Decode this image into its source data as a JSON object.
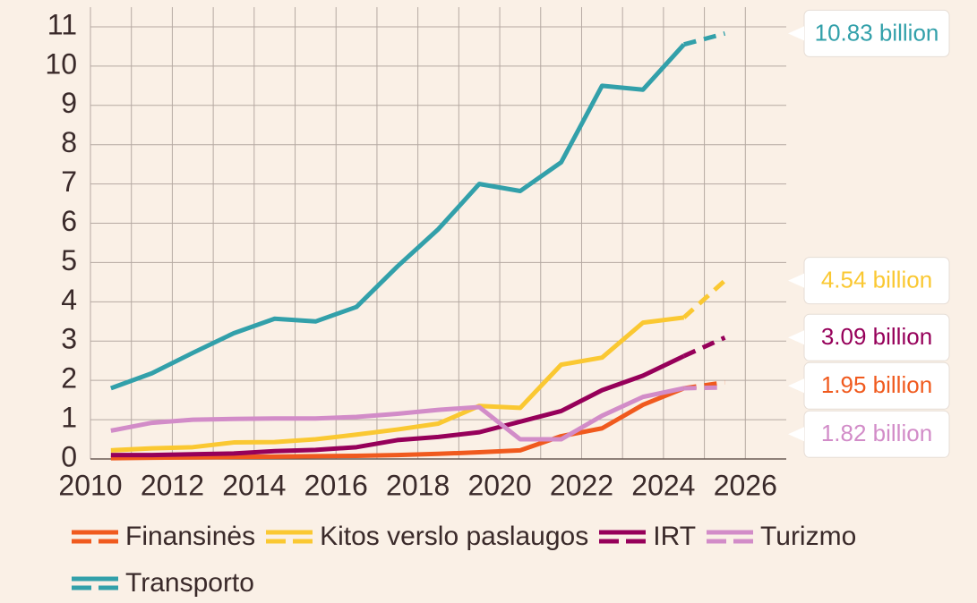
{
  "chart_data": {
    "type": "line",
    "x": [
      2010.5,
      2011.5,
      2012.5,
      2013.5,
      2014.5,
      2015.5,
      2016.5,
      2017.5,
      2018.5,
      2019.5,
      2020.5,
      2021.5,
      2022.5,
      2023.5,
      2024.5,
      2025.5
    ],
    "forecast_from": 2024.5,
    "series": [
      {
        "name": "Finansinės",
        "color": "#f05a1e",
        "values": [
          0.02,
          0.03,
          0.04,
          0.05,
          0.06,
          0.07,
          0.08,
          0.1,
          0.13,
          0.17,
          0.22,
          0.58,
          0.78,
          1.38,
          1.8,
          1.95
        ],
        "end_label": "1.95 billion"
      },
      {
        "name": "Kitos verslo paslaugos",
        "color": "#fac832",
        "values": [
          0.22,
          0.27,
          0.3,
          0.42,
          0.43,
          0.5,
          0.62,
          0.75,
          0.9,
          1.35,
          1.3,
          2.4,
          2.58,
          3.47,
          3.6,
          4.54
        ],
        "end_label": "4.54 billion"
      },
      {
        "name": "IRT",
        "color": "#96005a",
        "values": [
          0.1,
          0.1,
          0.12,
          0.14,
          0.2,
          0.23,
          0.3,
          0.48,
          0.56,
          0.68,
          0.95,
          1.22,
          1.75,
          2.12,
          2.62,
          3.09
        ],
        "end_label": "3.09 billion"
      },
      {
        "name": "Turizmo",
        "color": "#d28cc8",
        "values": [
          0.72,
          0.92,
          1.0,
          1.02,
          1.03,
          1.03,
          1.07,
          1.15,
          1.25,
          1.32,
          0.5,
          0.5,
          1.1,
          1.58,
          1.8,
          1.82
        ],
        "end_label": "1.82 billion"
      },
      {
        "name": "Transporto",
        "color": "#32a0aa",
        "values": [
          1.8,
          2.18,
          2.7,
          3.2,
          3.57,
          3.5,
          3.87,
          4.9,
          5.85,
          7.0,
          6.82,
          7.55,
          9.5,
          9.4,
          10.55,
          10.83
        ],
        "end_label": "10.83 billion"
      }
    ],
    "xlim": [
      2010,
      2027
    ],
    "xticks": [
      2010,
      2012,
      2014,
      2016,
      2018,
      2020,
      2022,
      2024,
      2026
    ],
    "xgrid_minor": [
      2011,
      2013,
      2015,
      2017,
      2019,
      2021,
      2023,
      2025
    ],
    "ylim": [
      0,
      11.5
    ],
    "yticks": [
      0,
      1,
      2,
      3,
      4,
      5,
      6,
      7,
      8,
      9,
      10,
      11
    ],
    "grid": true
  }
}
